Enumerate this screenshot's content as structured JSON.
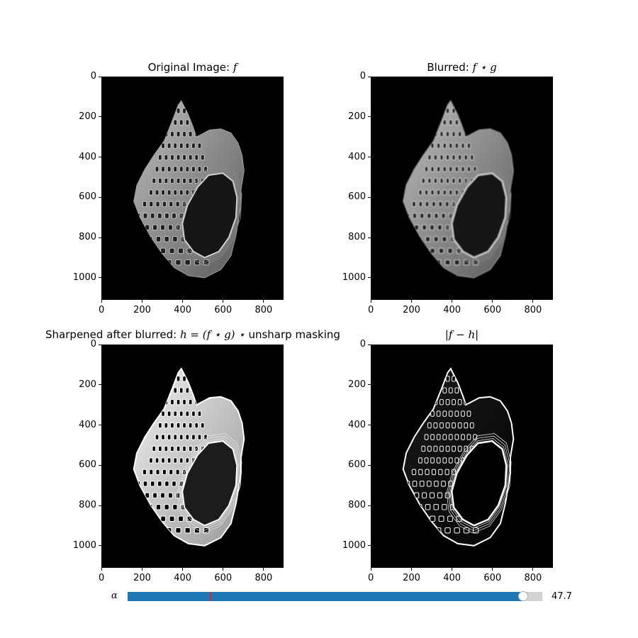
{
  "panels": [
    {
      "id": "original",
      "title_text": "Original Image: ",
      "title_math": "f",
      "variant": "original"
    },
    {
      "id": "blurred",
      "title_text": "Blurred: ",
      "title_math": "f ⋆ g",
      "variant": "blurred"
    },
    {
      "id": "sharpened",
      "title_text": "Sharpened after blurred: ",
      "title_math": "h = (f ⋆ g) ⋆",
      "title_suffix": " unsharp masking",
      "variant": "sharpened"
    },
    {
      "id": "difference",
      "title_text": "",
      "title_math": "|f − h|",
      "variant": "difference"
    }
  ],
  "axis": {
    "x_ticks": [
      "0",
      "200",
      "400",
      "600",
      "800"
    ],
    "y_ticks": [
      "0",
      "200",
      "400",
      "600",
      "800",
      "1000"
    ],
    "x_range": [
      0,
      900
    ],
    "y_range": [
      0,
      1110
    ]
  },
  "slider": {
    "label": "α",
    "value": 47.7,
    "value_text": "47.7",
    "min": 0,
    "max": 50,
    "valinit": 10
  },
  "colors": {
    "slider_fill": "#1f77b4",
    "slider_track": "#d3d3d3",
    "valinit_marker": "#d62728"
  }
}
